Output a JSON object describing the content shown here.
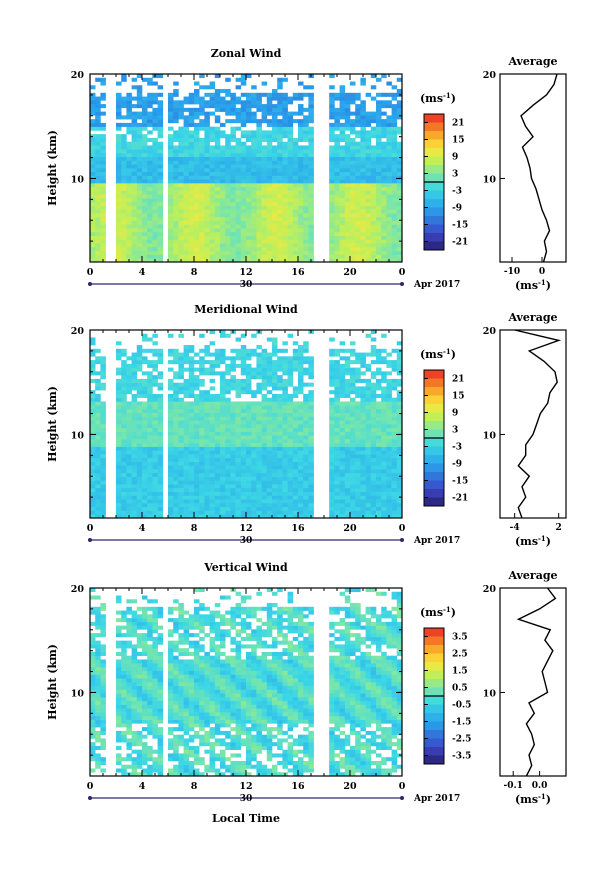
{
  "chart_data": [
    {
      "type": "heatmap",
      "title": "Zonal Wind",
      "ylabel": "Height (km)",
      "xlabel": "",
      "ylim": [
        2,
        20
      ],
      "xlim": [
        0,
        24
      ],
      "x_ticks": [
        "0",
        "4",
        "8",
        "12",
        "16",
        "20",
        "0"
      ],
      "y_ticks": [
        "20",
        "10"
      ],
      "date_label": "30",
      "month_label": "Apr 2017",
      "colorbar": {
        "unit": "(ms-1)",
        "ticks": [
          "21",
          "15",
          "9",
          "3",
          "-3",
          "-9",
          "-15",
          "-21"
        ],
        "range": [
          -24,
          24
        ]
      },
      "profile": {
        "title": "Average",
        "xlabel": "(ms-1)",
        "x_ticks": [
          "-10",
          "0"
        ],
        "y_ticks": [
          "20",
          "10"
        ],
        "xlim": [
          -14,
          8
        ],
        "height_km": [
          2,
          3,
          4,
          5,
          6,
          7,
          8,
          9,
          10,
          11,
          12,
          13,
          14,
          15,
          16,
          17,
          18,
          19,
          20
        ],
        "mean": [
          0.5,
          1.5,
          0.8,
          2.5,
          1.5,
          0.0,
          -1.0,
          -2.0,
          -3.5,
          -4.0,
          -5.0,
          -6.5,
          -3.0,
          -5.5,
          -7.0,
          -3.0,
          1.5,
          4.0,
          5.0
        ]
      }
    },
    {
      "type": "heatmap",
      "title": "Meridional Wind",
      "ylabel": "Height (km)",
      "xlabel": "",
      "ylim": [
        2,
        20
      ],
      "xlim": [
        0,
        24
      ],
      "x_ticks": [
        "0",
        "4",
        "8",
        "12",
        "16",
        "20",
        "0"
      ],
      "y_ticks": [
        "20",
        "10"
      ],
      "date_label": "30",
      "month_label": "Apr 2017",
      "colorbar": {
        "unit": "(ms-1)",
        "ticks": [
          "21",
          "15",
          "9",
          "3",
          "-3",
          "-9",
          "-15",
          "-21"
        ],
        "range": [
          -24,
          24
        ]
      },
      "profile": {
        "title": "Average",
        "xlabel": "(ms-1)",
        "x_ticks": [
          "-4",
          "2"
        ],
        "y_ticks": [
          "20",
          "10"
        ],
        "xlim": [
          -6,
          3
        ],
        "height_km": [
          2,
          3,
          4,
          5,
          6,
          7,
          8,
          9,
          10,
          11,
          12,
          13,
          14,
          15,
          16,
          17,
          18,
          19,
          20
        ],
        "mean": [
          -3.0,
          -3.5,
          -2.5,
          -3.0,
          -2.0,
          -3.5,
          -2.5,
          -2.5,
          -1.5,
          -1.0,
          -0.5,
          0.5,
          0.8,
          1.8,
          1.5,
          0.0,
          -2.0,
          2.0,
          -4.0
        ]
      }
    },
    {
      "type": "heatmap",
      "title": "Vertical Wind",
      "ylabel": "Height (km)",
      "xlabel": "Local Time",
      "ylim": [
        2,
        20
      ],
      "xlim": [
        0,
        24
      ],
      "x_ticks": [
        "0",
        "4",
        "8",
        "12",
        "16",
        "20",
        "0"
      ],
      "y_ticks": [
        "20",
        "10"
      ],
      "date_label": "30",
      "month_label": "Apr 2017",
      "colorbar": {
        "unit": "(ms-1)",
        "ticks": [
          "3.5",
          "2.5",
          "1.5",
          "0.5",
          "-0.5",
          "-1.5",
          "-2.5",
          "-3.5"
        ],
        "range": [
          -4,
          4
        ]
      },
      "profile": {
        "title": "Average",
        "xlabel": "(ms-1)",
        "x_ticks": [
          "-0.1",
          "0.0"
        ],
        "y_ticks": [
          "20",
          "10"
        ],
        "xlim": [
          -0.15,
          0.1
        ],
        "height_km": [
          2,
          3,
          4,
          5,
          6,
          7,
          8,
          9,
          10,
          11,
          12,
          13,
          14,
          15,
          16,
          17,
          18,
          19,
          20
        ],
        "mean": [
          -0.05,
          -0.03,
          -0.04,
          -0.02,
          -0.03,
          -0.05,
          -0.02,
          -0.04,
          0.03,
          0.02,
          0.01,
          0.03,
          0.05,
          0.02,
          0.04,
          -0.08,
          0.0,
          0.06,
          0.03
        ]
      }
    }
  ]
}
